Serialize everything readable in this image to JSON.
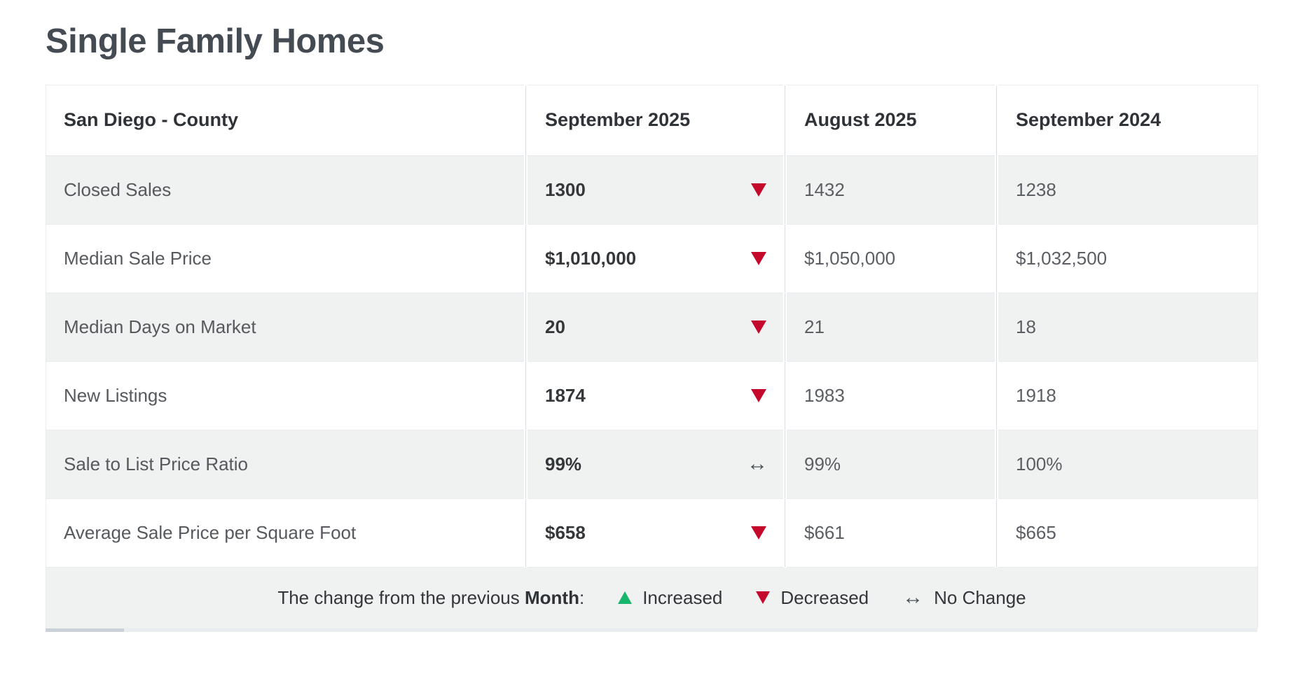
{
  "page": {
    "title": "Single Family Homes"
  },
  "table": {
    "region_header": "San Diego - County",
    "column_headers": [
      "September 2025",
      "August 2025",
      "September 2024"
    ],
    "rows": [
      {
        "label": "Closed Sales",
        "current": "1300",
        "change": "down",
        "prev_month": "1432",
        "prev_year": "1238"
      },
      {
        "label": "Median Sale Price",
        "current": "$1,010,000",
        "change": "down",
        "prev_month": "$1,050,000",
        "prev_year": "$1,032,500"
      },
      {
        "label": "Median Days on Market",
        "current": "20",
        "change": "down",
        "prev_month": "21",
        "prev_year": "18"
      },
      {
        "label": "New Listings",
        "current": "1874",
        "change": "down",
        "prev_month": "1983",
        "prev_year": "1918"
      },
      {
        "label": "Sale to List Price Ratio",
        "current": "99%",
        "change": "none",
        "prev_month": "99%",
        "prev_year": "100%"
      },
      {
        "label": "Average Sale Price per Square Foot",
        "current": "$658",
        "change": "down",
        "prev_month": "$661",
        "prev_year": "$665"
      }
    ],
    "legend": {
      "prefix": "The change from the previous",
      "bold_word": "Month",
      "suffix": ":",
      "increased_label": "Increased",
      "decreased_label": "Decreased",
      "no_change_label": "No Change"
    }
  },
  "colors": {
    "increase": "#16b76c",
    "decrease": "#c5092d",
    "no-change": "#4a5055"
  }
}
